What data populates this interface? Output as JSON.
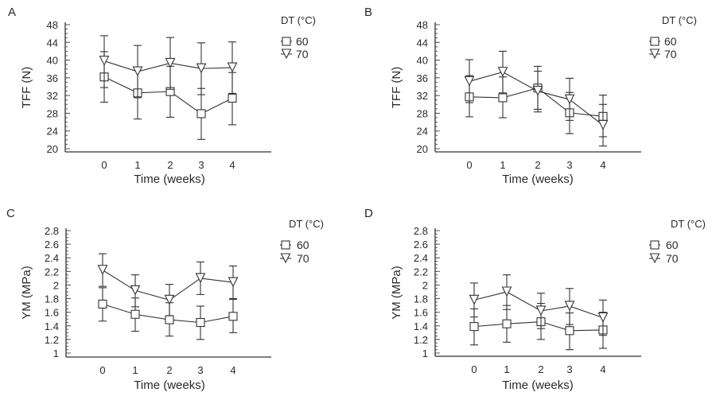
{
  "figure": {
    "legend_title": "DT (°C)",
    "legend_items": [
      {
        "label": "60",
        "marker": "square"
      },
      {
        "label": "70",
        "marker": "triangle-down"
      }
    ]
  },
  "chart_data": [
    {
      "panel": "A",
      "type": "line",
      "title": "",
      "xlabel": "Time (weeks)",
      "ylabel": "TFF (N)",
      "x": [
        0,
        1,
        2,
        3,
        4
      ],
      "xticks": [
        "0",
        "1",
        "2",
        "3",
        "4"
      ],
      "ylim": [
        20,
        48
      ],
      "yticks": [
        "20",
        "24",
        "28",
        "32",
        "36",
        "40",
        "44",
        "48"
      ],
      "ytick_values": [
        20,
        24,
        28,
        32,
        36,
        40,
        44,
        48
      ],
      "minor_tick_step": 1,
      "grid": false,
      "legend": "top-right",
      "legend_title": "DT (°C)",
      "series": [
        {
          "name": "60",
          "marker": "square",
          "values": [
            36.2,
            32.6,
            32.9,
            27.9,
            31.4
          ],
          "err_low": [
            30.5,
            26.7,
            27.1,
            22.1,
            25.4
          ],
          "err_high": [
            41.9,
            38.3,
            38.6,
            33.6,
            37.2
          ]
        },
        {
          "name": "70",
          "marker": "triangle-down",
          "values": [
            39.8,
            37.4,
            39.3,
            38.1,
            38.3
          ],
          "err_low": [
            33.8,
            31.5,
            33.4,
            32.2,
            32.5
          ],
          "err_high": [
            45.5,
            43.3,
            45.1,
            43.9,
            44.1
          ]
        }
      ]
    },
    {
      "panel": "B",
      "type": "line",
      "title": "",
      "xlabel": "Time (weeks)",
      "ylabel": "TFF (N)",
      "x": [
        0,
        1,
        2,
        3,
        4
      ],
      "xticks": [
        "0",
        "1",
        "2",
        "3",
        "4"
      ],
      "ylim": [
        20,
        48
      ],
      "yticks": [
        "20",
        "24",
        "28",
        "32",
        "36",
        "40",
        "44",
        "48"
      ],
      "ytick_values": [
        20,
        24,
        28,
        32,
        36,
        40,
        44,
        48
      ],
      "minor_tick_step": 1,
      "grid": false,
      "legend": "top-right",
      "legend_title": "DT (°C)",
      "series": [
        {
          "name": "60",
          "marker": "square",
          "values": [
            31.7,
            31.5,
            33.7,
            28.1,
            27.3
          ],
          "err_low": [
            27.2,
            27.0,
            28.9,
            23.4,
            22.7
          ],
          "err_high": [
            36.5,
            36.2,
            38.6,
            32.7,
            32.1
          ]
        },
        {
          "name": "70",
          "marker": "triangle-down",
          "values": [
            35.2,
            37.3,
            33.0,
            31.1,
            25.3
          ],
          "err_low": [
            30.4,
            32.6,
            28.3,
            26.4,
            20.6
          ],
          "err_high": [
            40.1,
            42.0,
            37.5,
            35.9,
            30.0
          ]
        }
      ]
    },
    {
      "panel": "C",
      "type": "line",
      "title": "",
      "xlabel": "Time (weeks)",
      "ylabel": "YM (MPa)",
      "x": [
        0,
        1,
        2,
        3,
        4
      ],
      "xticks": [
        "0",
        "1",
        "2",
        "3",
        "4"
      ],
      "ylim": [
        1,
        2.8
      ],
      "yticks": [
        "1",
        "1.2",
        "1.4",
        "1.6",
        "1.8",
        "2",
        "2.2",
        "2.4",
        "2.6",
        "2.8"
      ],
      "ytick_values": [
        1,
        1.2,
        1.4,
        1.6,
        1.8,
        2,
        2.2,
        2.4,
        2.6,
        2.8
      ],
      "minor_tick_step": 0.05,
      "grid": false,
      "legend": "top-right",
      "legend_title": "DT (°C)",
      "series": [
        {
          "name": "60",
          "marker": "square",
          "values": [
            1.72,
            1.57,
            1.49,
            1.45,
            1.54
          ],
          "err_low": [
            1.47,
            1.32,
            1.25,
            1.2,
            1.3
          ],
          "err_high": [
            1.96,
            1.81,
            1.74,
            1.69,
            1.79
          ]
        },
        {
          "name": "70",
          "marker": "triangle-down",
          "values": [
            2.22,
            1.92,
            1.78,
            2.1,
            2.04
          ],
          "err_low": [
            1.98,
            1.68,
            1.55,
            1.86,
            1.8
          ],
          "err_high": [
            2.46,
            2.15,
            2.01,
            2.34,
            2.28
          ]
        }
      ]
    },
    {
      "panel": "D",
      "type": "line",
      "title": "",
      "xlabel": "Time (weeks)",
      "ylabel": "YM (MPa)",
      "x": [
        0,
        1,
        2,
        3,
        4
      ],
      "xticks": [
        "0",
        "1",
        "2",
        "3",
        "4"
      ],
      "ylim": [
        1,
        2.8
      ],
      "yticks": [
        "1",
        "1.2",
        "1.4",
        "1.6",
        "1.8",
        "2",
        "2.2",
        "2.4",
        "2.6",
        "2.8"
      ],
      "ytick_values": [
        1,
        1.2,
        1.4,
        1.6,
        1.8,
        2,
        2.2,
        2.4,
        2.6,
        2.8
      ],
      "minor_tick_step": 0.05,
      "grid": false,
      "legend": "top-right",
      "legend_title": "DT (°C)",
      "series": [
        {
          "name": "60",
          "marker": "square",
          "values": [
            1.39,
            1.43,
            1.46,
            1.33,
            1.34
          ],
          "err_low": [
            1.12,
            1.16,
            1.2,
            1.05,
            1.07
          ],
          "err_high": [
            1.65,
            1.7,
            1.73,
            1.59,
            1.6
          ]
        },
        {
          "name": "70",
          "marker": "triangle-down",
          "values": [
            1.78,
            1.9,
            1.62,
            1.69,
            1.52
          ],
          "err_low": [
            1.53,
            1.64,
            1.36,
            1.42,
            1.26
          ],
          "err_high": [
            2.03,
            2.15,
            1.88,
            1.95,
            1.78
          ]
        }
      ]
    }
  ]
}
